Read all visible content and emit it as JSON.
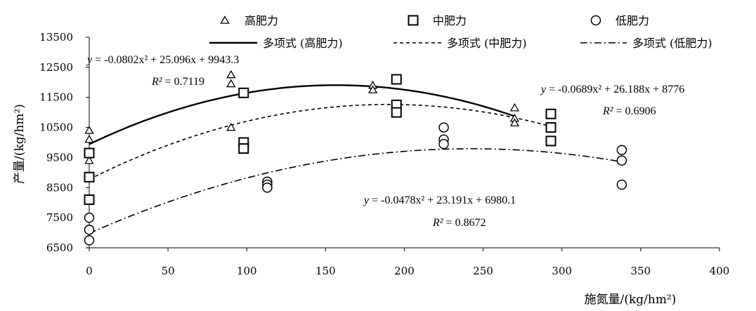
{
  "chart_data": {
    "type": "scatter",
    "title": "",
    "xlabel": "施氮量/(kg/hm²)",
    "ylabel": "产量/(kg/hm²)",
    "xlim": [
      0,
      400
    ],
    "ylim": [
      6500,
      13500
    ],
    "xticks": [
      "0",
      "50",
      "100",
      "150",
      "200",
      "250",
      "300",
      "350",
      "400"
    ],
    "yticks": [
      "6500",
      "7500",
      "8500",
      "9500",
      "10500",
      "11500",
      "12500",
      "13500"
    ],
    "grid": false,
    "legend_position": "top",
    "series": [
      {
        "name": "高肥力",
        "marker": "triangle",
        "points": [
          {
            "x": 0,
            "y": 10400
          },
          {
            "x": 0,
            "y": 10100
          },
          {
            "x": 0,
            "y": 9400
          },
          {
            "x": 90,
            "y": 12250
          },
          {
            "x": 90,
            "y": 11950
          },
          {
            "x": 90,
            "y": 10500
          },
          {
            "x": 180,
            "y": 11900
          },
          {
            "x": 180,
            "y": 11750
          },
          {
            "x": 270,
            "y": 11150
          },
          {
            "x": 270,
            "y": 10800
          },
          {
            "x": 270,
            "y": 10650
          }
        ],
        "fit": {
          "name": "多项式 (高肥力)",
          "style": "solid",
          "a": -0.0802,
          "b": 25.096,
          "c": 9943.3,
          "x_range": [
            0,
            270
          ]
        },
        "equation": {
          "lead": "y",
          "rest": " = -0.0802x² + 25.096x + 9943.3"
        },
        "r2": {
          "lead": "R²",
          "rest": " = 0.7119"
        }
      },
      {
        "name": "中肥力",
        "marker": "square",
        "points": [
          {
            "x": 0,
            "y": 9650
          },
          {
            "x": 0,
            "y": 8850
          },
          {
            "x": 0,
            "y": 8100
          },
          {
            "x": 98,
            "y": 11650
          },
          {
            "x": 98,
            "y": 10000
          },
          {
            "x": 98,
            "y": 9800
          },
          {
            "x": 195,
            "y": 12100
          },
          {
            "x": 195,
            "y": 11250
          },
          {
            "x": 195,
            "y": 11000
          },
          {
            "x": 293,
            "y": 10950
          },
          {
            "x": 293,
            "y": 10500
          },
          {
            "x": 293,
            "y": 10050
          }
        ],
        "fit": {
          "name": "多项式 (中肥力)",
          "style": "dashed",
          "a": -0.0689,
          "b": 26.188,
          "c": 8776,
          "x_range": [
            0,
            293
          ]
        },
        "equation": {
          "lead": "y",
          "rest": " = -0.0689x² + 26.188x + 8776"
        },
        "r2": {
          "lead": "R²",
          "rest": " = 0.6906"
        }
      },
      {
        "name": "低肥力",
        "marker": "circle",
        "points": [
          {
            "x": 0,
            "y": 7500
          },
          {
            "x": 0,
            "y": 7100
          },
          {
            "x": 0,
            "y": 6750
          },
          {
            "x": 113,
            "y": 8700
          },
          {
            "x": 113,
            "y": 8600
          },
          {
            "x": 113,
            "y": 8500
          },
          {
            "x": 225,
            "y": 10500
          },
          {
            "x": 225,
            "y": 10100
          },
          {
            "x": 225,
            "y": 9950
          },
          {
            "x": 338,
            "y": 9750
          },
          {
            "x": 338,
            "y": 9400
          },
          {
            "x": 338,
            "y": 8600
          }
        ],
        "fit": {
          "name": "多项式 (低肥力)",
          "style": "dashdot",
          "a": -0.0478,
          "b": 23.191,
          "c": 6980.1,
          "x_range": [
            0,
            338
          ]
        },
        "equation": {
          "lead": "y",
          "rest": " = -0.0478x² + 23.191x + 6980.1"
        },
        "r2": {
          "lead": "R²",
          "rest": " = 0.8672"
        }
      }
    ]
  }
}
